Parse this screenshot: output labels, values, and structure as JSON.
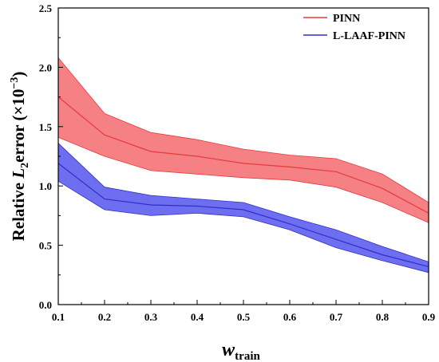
{
  "chart_data": {
    "type": "line",
    "x": [
      0.1,
      0.2,
      0.3,
      0.4,
      0.5,
      0.6,
      0.7,
      0.8,
      0.9
    ],
    "xlim": [
      0.1,
      0.9
    ],
    "ylim": [
      0.0,
      2.5
    ],
    "xticks": [
      "0.1",
      "0.2",
      "0.3",
      "0.4",
      "0.5",
      "0.6",
      "0.7",
      "0.8",
      "0.9"
    ],
    "yticks": [
      "0.0",
      "0.5",
      "1.0",
      "1.5",
      "2.0",
      "2.5"
    ],
    "xlabel": {
      "main": "w",
      "sub": "train"
    },
    "ylabel": {
      "pre": "Relative ",
      "var": "L",
      "sub": "2",
      "post": "error (×10",
      "sup": "−3",
      "end": ")"
    },
    "legend_position": "top-right",
    "grid": false,
    "series": [
      {
        "name": "PINN",
        "color": "#e8393d",
        "fill": "#f36b6f",
        "values": [
          1.75,
          1.43,
          1.29,
          1.25,
          1.19,
          1.16,
          1.12,
          0.98,
          0.77
        ],
        "upper": [
          2.08,
          1.61,
          1.45,
          1.39,
          1.31,
          1.26,
          1.23,
          1.1,
          0.86
        ],
        "lower": [
          1.41,
          1.25,
          1.13,
          1.1,
          1.07,
          1.05,
          0.99,
          0.86,
          0.69
        ]
      },
      {
        "name": "L-LAAF-PINN",
        "color": "#2f2fc8",
        "fill": "#5555ee",
        "values": [
          1.19,
          0.89,
          0.84,
          0.83,
          0.8,
          0.68,
          0.55,
          0.42,
          0.32
        ],
        "upper": [
          1.36,
          0.99,
          0.92,
          0.89,
          0.86,
          0.74,
          0.63,
          0.49,
          0.36
        ],
        "lower": [
          1.04,
          0.8,
          0.75,
          0.77,
          0.74,
          0.63,
          0.48,
          0.37,
          0.27
        ]
      }
    ]
  }
}
